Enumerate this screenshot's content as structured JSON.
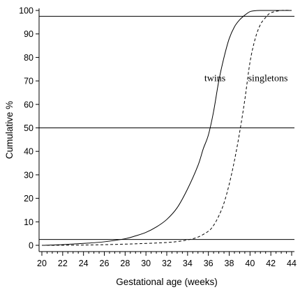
{
  "chart_data": {
    "type": "line",
    "xlabel": "Gestational age (weeks)",
    "ylabel": "Cumulative %",
    "xlim": [
      20,
      44
    ],
    "ylim": [
      0,
      100
    ],
    "x_ticks": [
      20,
      22,
      24,
      26,
      28,
      30,
      32,
      34,
      36,
      38,
      40,
      42,
      44
    ],
    "y_ticks": [
      0,
      10,
      20,
      30,
      40,
      50,
      60,
      70,
      80,
      90,
      100
    ],
    "reference_lines": [
      2.5,
      50,
      97.5
    ],
    "series": [
      {
        "name": "twins",
        "line_style": "solid",
        "x": [
          20,
          22,
          24,
          26,
          28,
          29,
          30,
          31,
          32,
          33,
          34,
          35,
          35.5,
          36,
          36.5,
          37,
          37.5,
          38,
          38.5,
          39,
          39.5,
          40,
          40.5,
          41,
          42,
          43,
          44
        ],
        "y": [
          0,
          0.3,
          0.8,
          1.5,
          2.8,
          4,
          5.5,
          7.8,
          11,
          16,
          24,
          34,
          41,
          47,
          57,
          70,
          80,
          88,
          93,
          96,
          98,
          99.5,
          99.9,
          100,
          100,
          100,
          100
        ]
      },
      {
        "name": "singletons",
        "line_style": "dashed",
        "x": [
          20,
          24,
          28,
          30,
          32,
          33,
          34,
          35,
          36,
          36.5,
          37,
          37.5,
          38,
          38.5,
          39,
          39.5,
          40,
          40.5,
          41,
          41.5,
          42,
          43,
          44
        ],
        "y": [
          0,
          0.1,
          0.5,
          0.8,
          1.2,
          1.6,
          2.3,
          3.5,
          6,
          8.5,
          12.5,
          18,
          26,
          36,
          48,
          62,
          78,
          88,
          94,
          97,
          99,
          100,
          100
        ]
      }
    ]
  }
}
